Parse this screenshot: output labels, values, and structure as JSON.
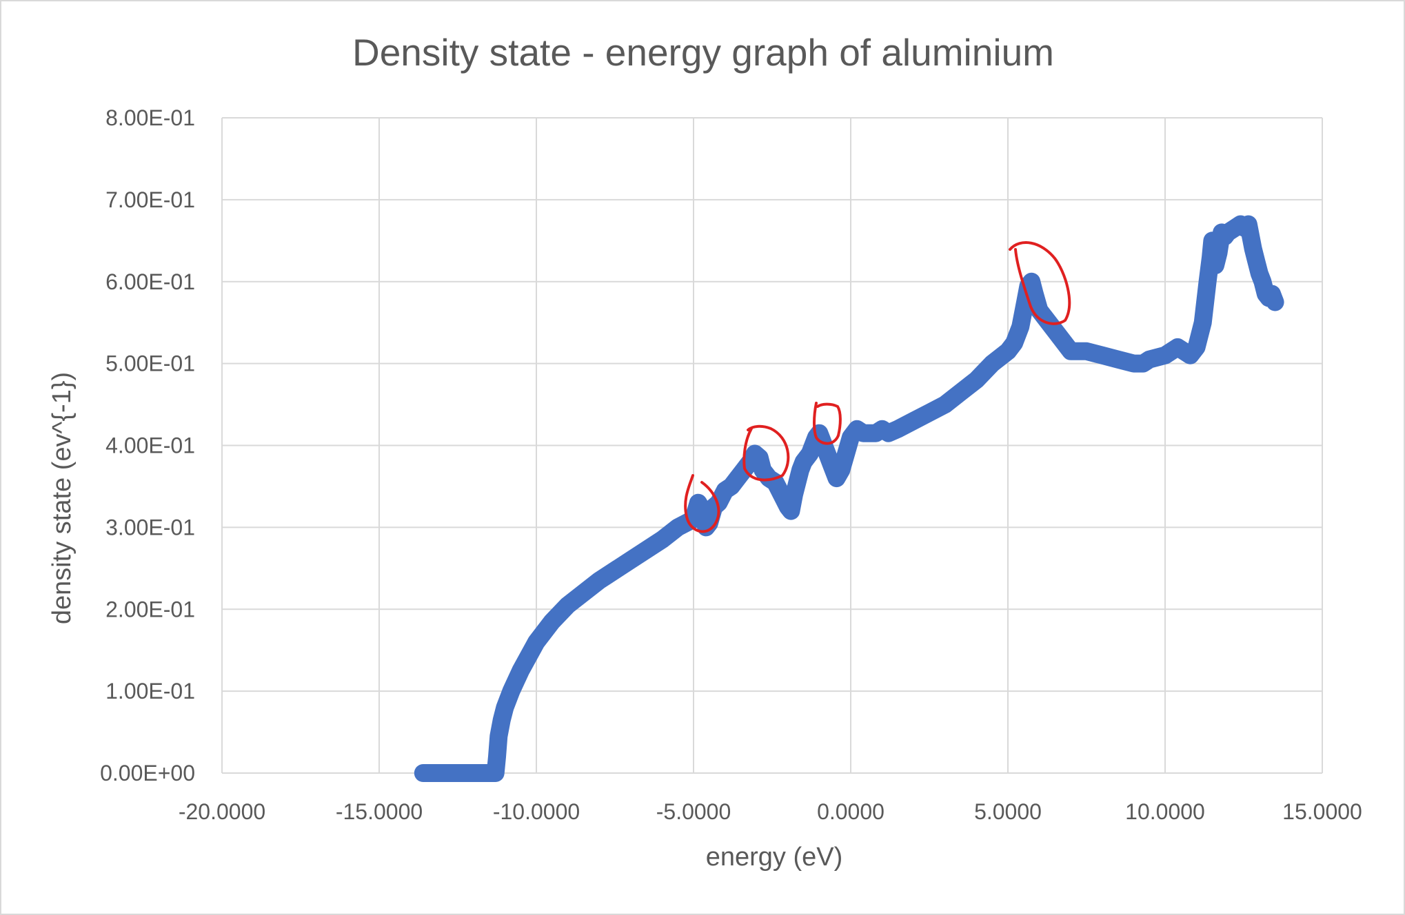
{
  "chart_data": {
    "type": "scatter",
    "title": "Density state - energy graph of aluminium",
    "xlabel": "energy (eV)",
    "ylabel": "density state (ev^{-1})",
    "xlim": [
      -20,
      15
    ],
    "ylim": [
      0,
      0.8
    ],
    "x_ticks": [
      -20,
      -15,
      -10,
      -5,
      0,
      5,
      10,
      15
    ],
    "x_tick_labels": [
      "-20.0000",
      "-15.0000",
      "-10.0000",
      "-5.0000",
      "0.0000",
      "5.0000",
      "10.0000",
      "15.0000"
    ],
    "y_ticks": [
      0,
      0.1,
      0.2,
      0.3,
      0.4,
      0.5,
      0.6,
      0.7,
      0.8
    ],
    "y_tick_labels": [
      "0.00E+00",
      "1.00E-01",
      "2.00E-01",
      "3.00E-01",
      "4.00E-01",
      "5.00E-01",
      "6.00E-01",
      "7.00E-01",
      "8.00E-01"
    ],
    "grid": true,
    "legend": "none",
    "series_color": "#4472c4",
    "annotation_color": "#e02020",
    "series": [
      {
        "x": [
          -13.6,
          -12.5,
          -11.3,
          -11.25,
          -11.2,
          -11.1,
          -11.0,
          -10.8,
          -10.5,
          -10.0,
          -9.5,
          -9.0,
          -8.0,
          -7.0,
          -6.0,
          -5.5,
          -5.0,
          -4.85,
          -4.7,
          -4.6,
          -4.5,
          -4.35,
          -4.2,
          -4.0,
          -3.8,
          -3.6,
          -3.4,
          -3.2,
          -3.05,
          -2.9,
          -2.8,
          -2.7,
          -2.6,
          -2.4,
          -2.2,
          -2.0,
          -1.9,
          -1.8,
          -1.6,
          -1.5,
          -1.3,
          -1.1,
          -1.0,
          -0.95,
          -0.8,
          -0.6,
          -0.45,
          -0.3,
          -0.15,
          0.0,
          0.2,
          0.4,
          0.6,
          0.8,
          1.0,
          1.2,
          1.5,
          2.0,
          2.5,
          3.0,
          3.5,
          4.0,
          4.5,
          5.0,
          5.2,
          5.4,
          5.55,
          5.65,
          5.75,
          5.85,
          6.0,
          6.5,
          7.0,
          7.5,
          8.0,
          8.5,
          9.0,
          9.3,
          9.5,
          10.0,
          10.4,
          10.6,
          10.8,
          11.0,
          11.2,
          11.35,
          11.45,
          11.5,
          11.6,
          11.7,
          11.8,
          11.9,
          12.0,
          12.2,
          12.4,
          12.55,
          12.65,
          12.7,
          12.8,
          12.9,
          13.0,
          13.1,
          13.2,
          13.3,
          13.4,
          13.5
        ],
        "y": [
          0.0,
          0.0,
          0.0,
          0.02,
          0.045,
          0.065,
          0.08,
          0.1,
          0.125,
          0.16,
          0.185,
          0.205,
          0.235,
          0.26,
          0.285,
          0.3,
          0.31,
          0.33,
          0.32,
          0.3,
          0.305,
          0.325,
          0.33,
          0.345,
          0.35,
          0.36,
          0.37,
          0.38,
          0.39,
          0.385,
          0.37,
          0.365,
          0.36,
          0.355,
          0.34,
          0.325,
          0.32,
          0.34,
          0.37,
          0.38,
          0.39,
          0.41,
          0.415,
          0.41,
          0.395,
          0.375,
          0.36,
          0.37,
          0.39,
          0.41,
          0.42,
          0.415,
          0.415,
          0.415,
          0.42,
          0.415,
          0.42,
          0.43,
          0.44,
          0.45,
          0.465,
          0.48,
          0.5,
          0.515,
          0.525,
          0.545,
          0.575,
          0.595,
          0.6,
          0.585,
          0.565,
          0.54,
          0.515,
          0.515,
          0.51,
          0.505,
          0.5,
          0.5,
          0.505,
          0.51,
          0.52,
          0.515,
          0.51,
          0.52,
          0.55,
          0.6,
          0.63,
          0.65,
          0.62,
          0.635,
          0.66,
          0.655,
          0.66,
          0.665,
          0.67,
          0.665,
          0.67,
          0.66,
          0.64,
          0.625,
          0.61,
          0.6,
          0.585,
          0.58,
          0.585,
          0.575
        ]
      }
    ]
  }
}
